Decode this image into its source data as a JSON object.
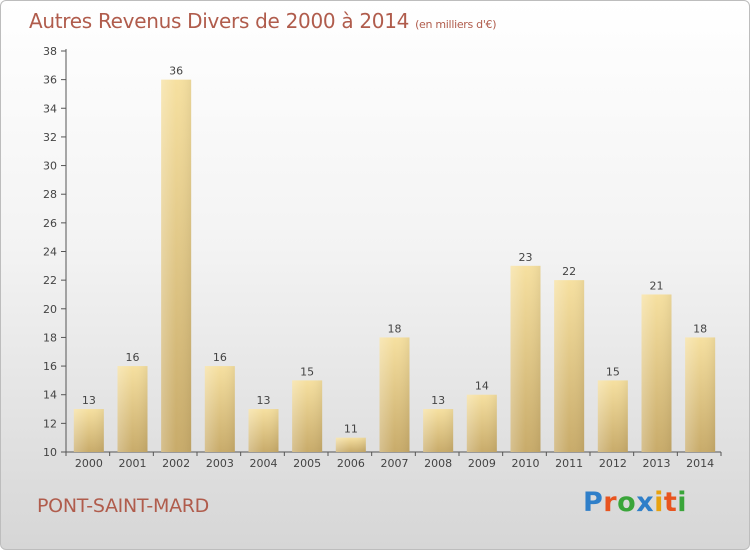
{
  "chart_data": {
    "type": "bar",
    "title": "Autres Revenus Divers de 2000 à 2014",
    "subtitle": "(en milliers d'€)",
    "categories": [
      "2000",
      "2001",
      "2002",
      "2003",
      "2004",
      "2005",
      "2006",
      "2007",
      "2008",
      "2009",
      "2010",
      "2011",
      "2012",
      "2013",
      "2014"
    ],
    "values": [
      13,
      16,
      36,
      16,
      13,
      15,
      11,
      18,
      13,
      14,
      23,
      22,
      15,
      21,
      18
    ],
    "ylim": [
      10,
      38
    ],
    "yticks": [
      10,
      12,
      14,
      16,
      18,
      20,
      22,
      24,
      26,
      28,
      30,
      32,
      34,
      36,
      38
    ],
    "xlabel": "",
    "ylabel": "",
    "grid": false,
    "bar_color": "#e8cc82"
  },
  "footer": {
    "town": "PONT-SAINT-MARD",
    "logo_letters": [
      "P",
      "r",
      "o",
      "x",
      "i",
      "t",
      "i"
    ],
    "logo_colors": [
      "#2f7fc9",
      "#e8541f",
      "#3aa53a",
      "#2f7fc9",
      "#e8a20f",
      "#e8541f",
      "#3aa53a"
    ]
  }
}
